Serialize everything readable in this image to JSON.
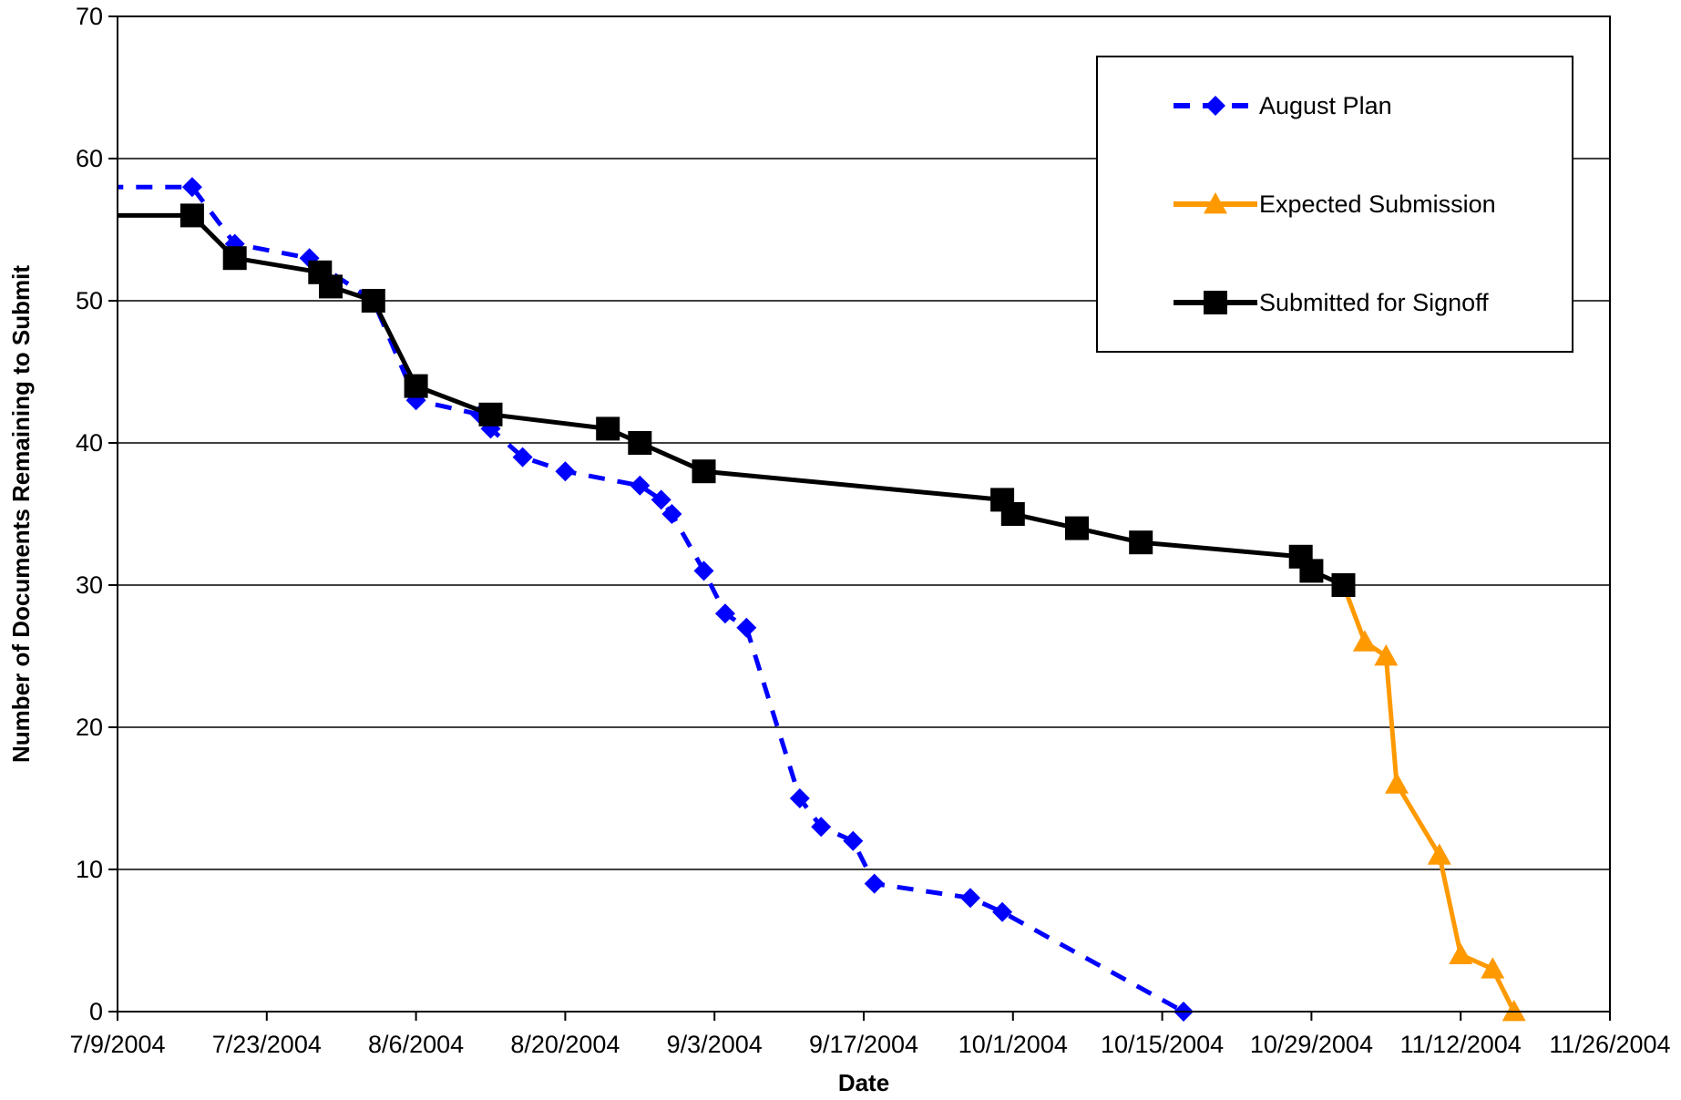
{
  "chart_data": {
    "type": "line",
    "title": "",
    "xlabel": "Date",
    "ylabel": "Number of Documents Remaining to Submit",
    "x_axis": {
      "type": "date",
      "range": [
        "2004-07-09",
        "2004-11-26"
      ],
      "ticks": [
        "2004-07-09",
        "2004-07-23",
        "2004-08-06",
        "2004-08-20",
        "2004-09-03",
        "2004-09-17",
        "2004-10-01",
        "2004-10-15",
        "2004-10-29",
        "2004-11-12",
        "2004-11-26"
      ],
      "tick_labels": [
        "7/9/2004",
        "7/23/2004",
        "8/6/2004",
        "8/20/2004",
        "9/3/2004",
        "9/17/2004",
        "10/1/2004",
        "10/15/2004",
        "10/29/2004",
        "11/12/2004",
        "11/26/2004"
      ]
    },
    "y_axis": {
      "range": [
        0,
        70
      ],
      "ticks": [
        0,
        10,
        20,
        30,
        40,
        50,
        60,
        70
      ],
      "tick_labels": [
        "0",
        "10",
        "20",
        "30",
        "40",
        "50",
        "60",
        "70"
      ]
    },
    "grid": {
      "horizontal": true,
      "vertical": false
    },
    "legend": {
      "placement": "top-right",
      "bordered": true
    },
    "series": [
      {
        "name": "August Plan",
        "color": "#0000FF",
        "line_style": "dashed",
        "marker": "diamond",
        "points": [
          {
            "x": "2004-07-08",
            "y": 58
          },
          {
            "x": "2004-07-16",
            "y": 58
          },
          {
            "x": "2004-07-20",
            "y": 54
          },
          {
            "x": "2004-07-27",
            "y": 53
          },
          {
            "x": "2004-08-02",
            "y": 50
          },
          {
            "x": "2004-08-06",
            "y": 43
          },
          {
            "x": "2004-08-12",
            "y": 42
          },
          {
            "x": "2004-08-13",
            "y": 41
          },
          {
            "x": "2004-08-16",
            "y": 39
          },
          {
            "x": "2004-08-20",
            "y": 38
          },
          {
            "x": "2004-08-27",
            "y": 37
          },
          {
            "x": "2004-08-29",
            "y": 36
          },
          {
            "x": "2004-08-30",
            "y": 35
          },
          {
            "x": "2004-09-02",
            "y": 31
          },
          {
            "x": "2004-09-04",
            "y": 28
          },
          {
            "x": "2004-09-06",
            "y": 27
          },
          {
            "x": "2004-09-11",
            "y": 15
          },
          {
            "x": "2004-09-13",
            "y": 13
          },
          {
            "x": "2004-09-16",
            "y": 12
          },
          {
            "x": "2004-09-18",
            "y": 9
          },
          {
            "x": "2004-09-27",
            "y": 8
          },
          {
            "x": "2004-09-30",
            "y": 7
          },
          {
            "x": "2004-10-17",
            "y": 0
          }
        ]
      },
      {
        "name": "Expected Submission",
        "color": "#FF9900",
        "line_style": "solid",
        "marker": "triangle",
        "points": [
          {
            "x": "2004-11-01",
            "y": 30
          },
          {
            "x": "2004-11-03",
            "y": 26
          },
          {
            "x": "2004-11-05",
            "y": 25
          },
          {
            "x": "2004-11-06",
            "y": 16
          },
          {
            "x": "2004-11-10",
            "y": 11
          },
          {
            "x": "2004-11-12",
            "y": 4
          },
          {
            "x": "2004-11-15",
            "y": 3
          },
          {
            "x": "2004-11-17",
            "y": 0
          }
        ]
      },
      {
        "name": "Submitted for Signoff",
        "color": "#000000",
        "line_style": "solid",
        "marker": "square",
        "points": [
          {
            "x": "2004-07-08",
            "y": 56
          },
          {
            "x": "2004-07-16",
            "y": 56
          },
          {
            "x": "2004-07-20",
            "y": 53
          },
          {
            "x": "2004-07-28",
            "y": 52
          },
          {
            "x": "2004-07-29",
            "y": 51
          },
          {
            "x": "2004-08-02",
            "y": 50
          },
          {
            "x": "2004-08-06",
            "y": 44
          },
          {
            "x": "2004-08-13",
            "y": 42
          },
          {
            "x": "2004-08-24",
            "y": 41
          },
          {
            "x": "2004-08-27",
            "y": 40
          },
          {
            "x": "2004-09-02",
            "y": 38
          },
          {
            "x": "2004-09-30",
            "y": 36
          },
          {
            "x": "2004-10-01",
            "y": 35
          },
          {
            "x": "2004-10-07",
            "y": 34
          },
          {
            "x": "2004-10-13",
            "y": 33
          },
          {
            "x": "2004-10-28",
            "y": 32
          },
          {
            "x": "2004-10-29",
            "y": 31
          },
          {
            "x": "2004-11-01",
            "y": 30
          }
        ]
      }
    ]
  }
}
